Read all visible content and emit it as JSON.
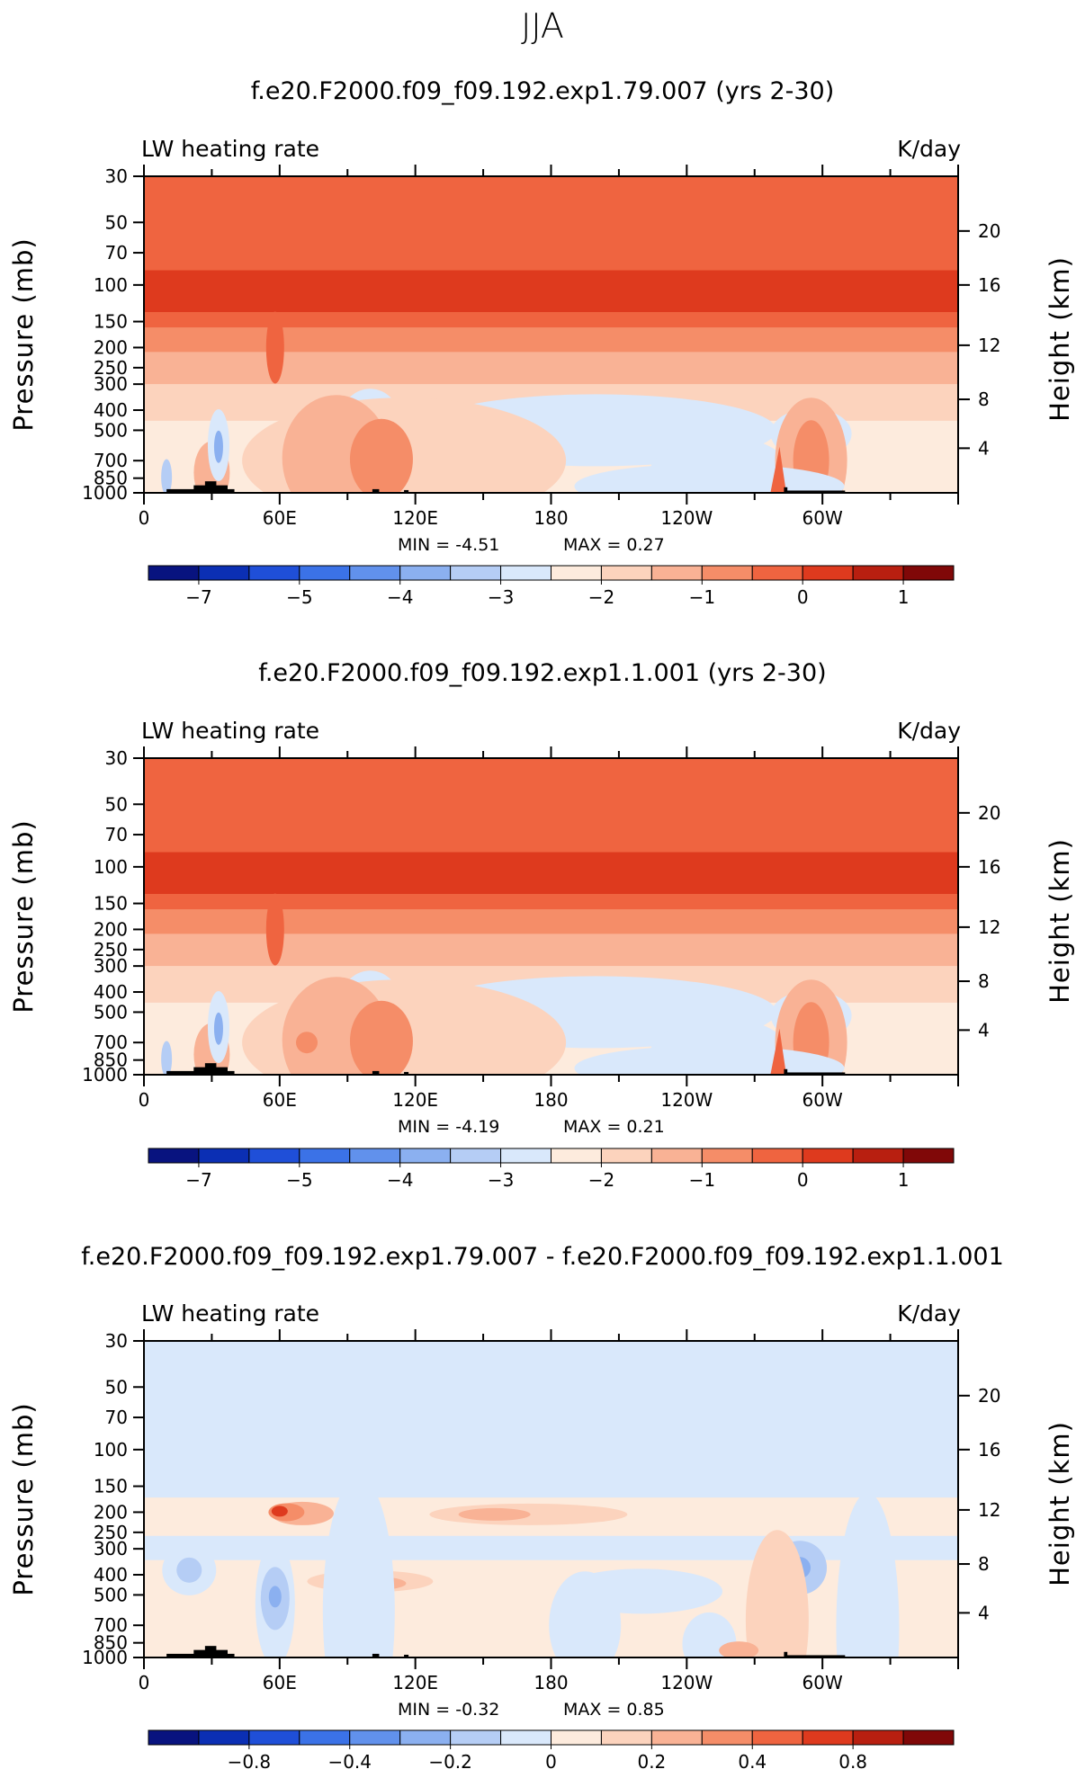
{
  "season": "JJA",
  "colors": {
    "scale": [
      "#08137f",
      "#0b2fb4",
      "#1f4fd8",
      "#3b72e7",
      "#6191ec",
      "#8bb0f0",
      "#b5cdf5",
      "#d9e8fb",
      "#fdebdd",
      "#fcd3bd",
      "#f9b295",
      "#f58d68",
      "#ef6440",
      "#de3a1e",
      "#b81f10",
      "#800808"
    ],
    "mountains": "#000000"
  },
  "panels": [
    {
      "title": "f.e20.F2000.f09_f09.192.exp1.79.007 (yrs 2-30)",
      "left_label": "LW heating rate",
      "right_label": "K/day",
      "min_text": "MIN =    -4.51",
      "max_text": "MAX =     0.27"
    },
    {
      "title": "f.e20.F2000.f09_f09.192.exp1.1.001 (yrs 2-30)",
      "left_label": "LW heating rate",
      "right_label": "K/day",
      "min_text": "MIN =    -4.19",
      "max_text": "MAX =     0.21"
    },
    {
      "title": "f.e20.F2000.f09_f09.192.exp1.79.007 - f.e20.F2000.f09_f09.192.exp1.1.001",
      "left_label": "LW heating rate",
      "right_label": "K/day",
      "min_text": "MIN =    -0.32",
      "max_text": "MAX =     0.85"
    }
  ],
  "chart_data": [
    {
      "type": "heatmap",
      "title": "f.e20.F2000.f09_f09.192.exp1.79.007 (yrs 2-30)",
      "variable": "LW heating rate",
      "units": "K/day",
      "xlabel": "",
      "ylabel": "Pressure (mb)",
      "y2label": "Height (km)",
      "x_ticks": [
        "0",
        "60E",
        "120E",
        "180",
        "120W",
        "60W"
      ],
      "y_ticks": [
        "30",
        "50",
        "70",
        "100",
        "150",
        "200",
        "250",
        "300",
        "400",
        "500",
        "700",
        "850",
        "1000"
      ],
      "y2_ticks": [
        "20",
        "16",
        "12",
        "8",
        "4"
      ],
      "colorbar_levels": [
        -7.5,
        -7,
        -6.5,
        -6,
        -5.5,
        -5,
        -4.5,
        -4,
        -3.5,
        -3,
        -2.5,
        -2,
        -1.5,
        -1,
        -0.5,
        0,
        0.5,
        1,
        1.5
      ],
      "colorbar_labels": [
        "-7",
        "-5",
        "-4",
        "-3",
        "-2",
        "-1",
        "0",
        "1"
      ],
      "min": -4.51,
      "max": 0.27
    },
    {
      "type": "heatmap",
      "title": "f.e20.F2000.f09_f09.192.exp1.1.001 (yrs 2-30)",
      "variable": "LW heating rate",
      "units": "K/day",
      "xlabel": "",
      "ylabel": "Pressure (mb)",
      "y2label": "Height (km)",
      "x_ticks": [
        "0",
        "60E",
        "120E",
        "180",
        "120W",
        "60W"
      ],
      "y_ticks": [
        "30",
        "50",
        "70",
        "100",
        "150",
        "200",
        "250",
        "300",
        "400",
        "500",
        "700",
        "850",
        "1000"
      ],
      "y2_ticks": [
        "20",
        "16",
        "12",
        "8",
        "4"
      ],
      "colorbar_levels": [
        -7.5,
        -7,
        -6.5,
        -6,
        -5.5,
        -5,
        -4.5,
        -4,
        -3.5,
        -3,
        -2.5,
        -2,
        -1.5,
        -1,
        -0.5,
        0,
        0.5,
        1,
        1.5
      ],
      "colorbar_labels": [
        "-7",
        "-5",
        "-4",
        "-3",
        "-2",
        "-1",
        "0",
        "1"
      ],
      "min": -4.19,
      "max": 0.21
    },
    {
      "type": "heatmap",
      "title": "f.e20.F2000.f09_f09.192.exp1.79.007 - f.e20.F2000.f09_f09.192.exp1.1.001",
      "variable": "LW heating rate",
      "units": "K/day",
      "xlabel": "",
      "ylabel": "Pressure (mb)",
      "y2label": "Height (km)",
      "x_ticks": [
        "0",
        "60E",
        "120E",
        "180",
        "120W",
        "60W"
      ],
      "y_ticks": [
        "30",
        "50",
        "70",
        "100",
        "150",
        "200",
        "250",
        "300",
        "400",
        "500",
        "700",
        "850",
        "1000"
      ],
      "y2_ticks": [
        "20",
        "16",
        "12",
        "8",
        "4"
      ],
      "colorbar_levels": [
        -1,
        -0.8,
        -0.6,
        -0.4,
        -0.3,
        -0.2,
        -0.1,
        -0.05,
        0,
        0.05,
        0.1,
        0.2,
        0.3,
        0.4,
        0.6,
        0.8,
        1
      ],
      "colorbar_labels": [
        "-0.8",
        "-0.4",
        "-0.2",
        "0",
        "0.2",
        "0.4",
        "0.8"
      ],
      "min": -0.32,
      "max": 0.85
    }
  ]
}
